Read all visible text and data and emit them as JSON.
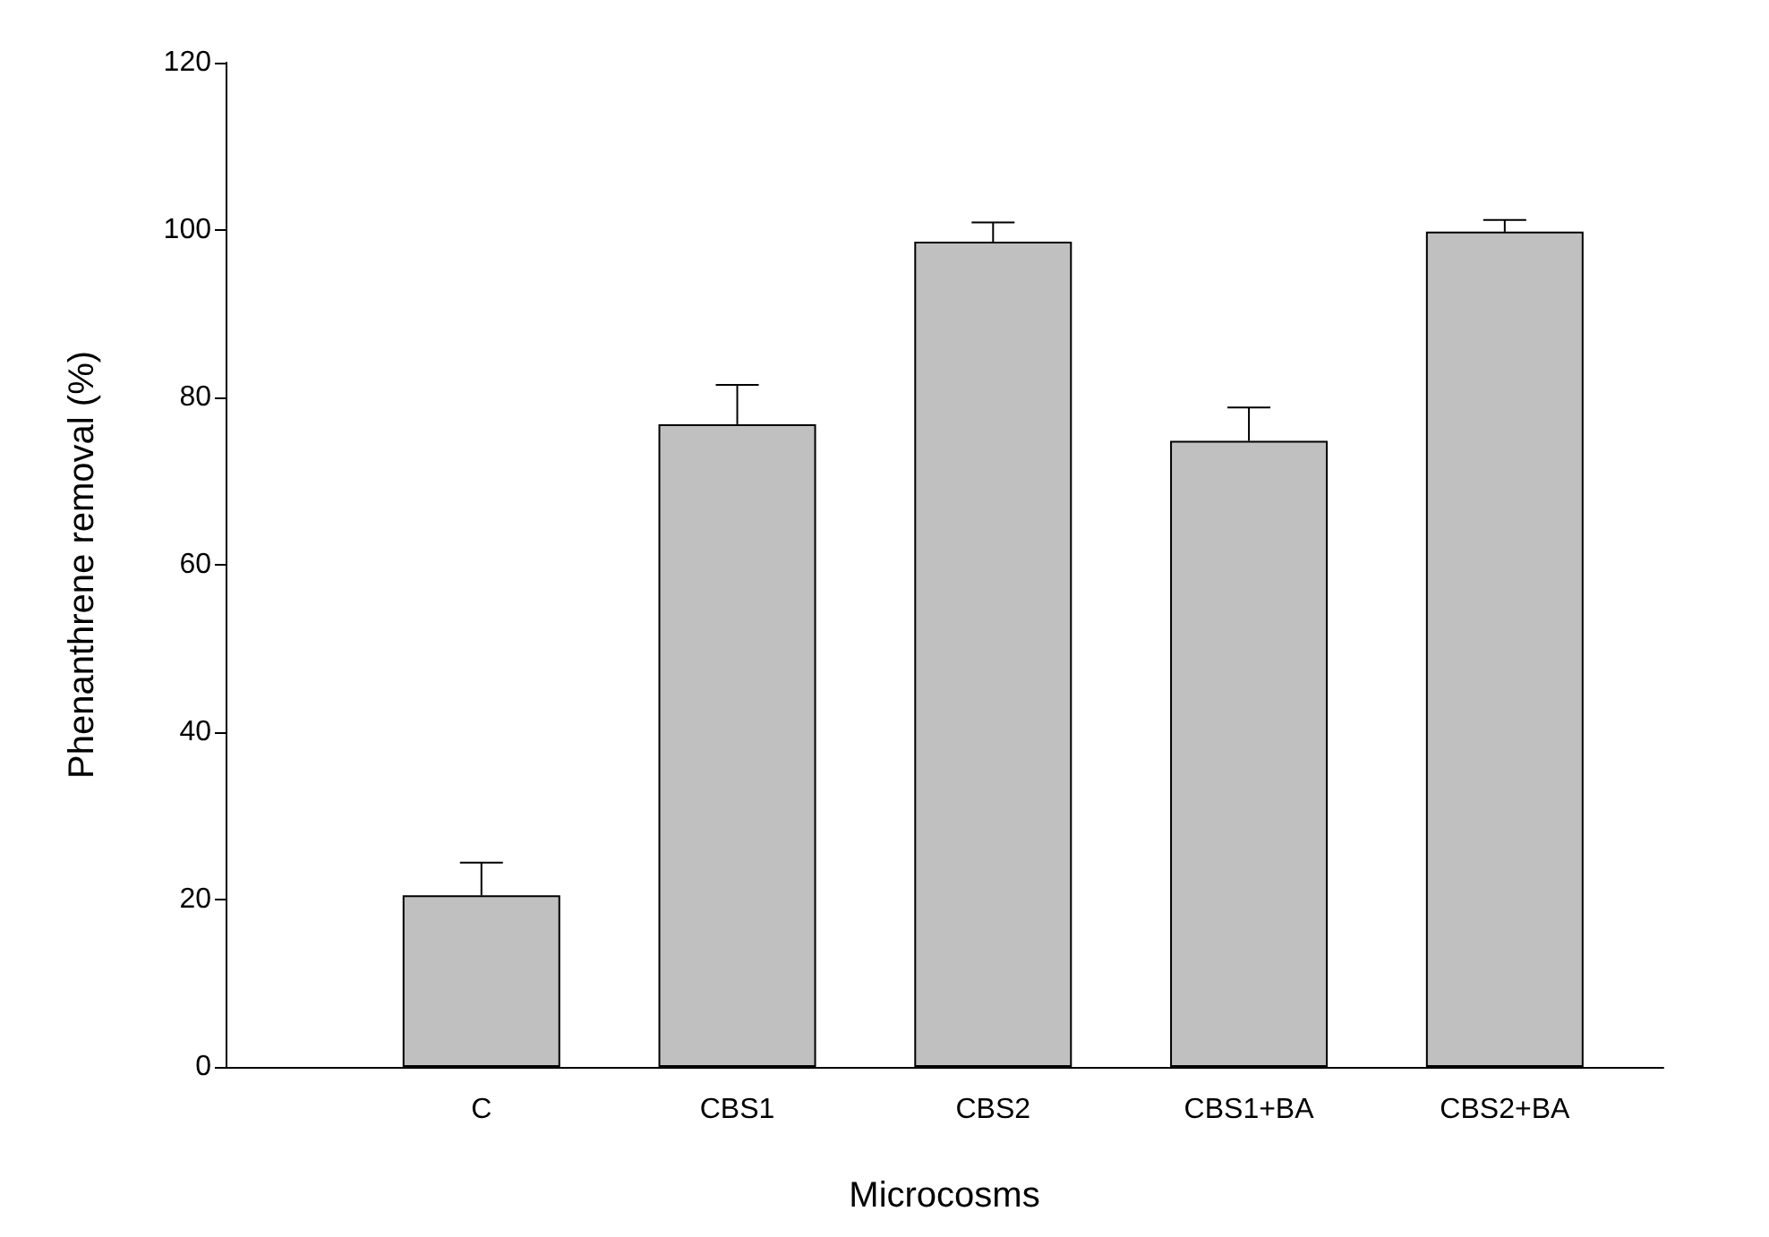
{
  "chart_data": {
    "type": "bar",
    "xlabel": "Microcosms",
    "ylabel": "Phenanthrene removal (%)",
    "categories": [
      "C",
      "CBS1",
      "CBS2",
      "CBS1+BA",
      "CBS2+BA"
    ],
    "values": [
      20.5,
      76.8,
      98.6,
      74.8,
      99.8
    ],
    "errors": [
      [
        20.5,
        24.4
      ],
      [
        76.8,
        81.5
      ],
      [
        98.6,
        100.9
      ],
      [
        74.8,
        78.8
      ],
      [
        99.8,
        101.2
      ]
    ],
    "color": "#c0c0c0",
    "ylim": [
      0,
      120
    ],
    "yticks": [
      0,
      20,
      40,
      60,
      80,
      100,
      120
    ],
    "grid": false
  }
}
